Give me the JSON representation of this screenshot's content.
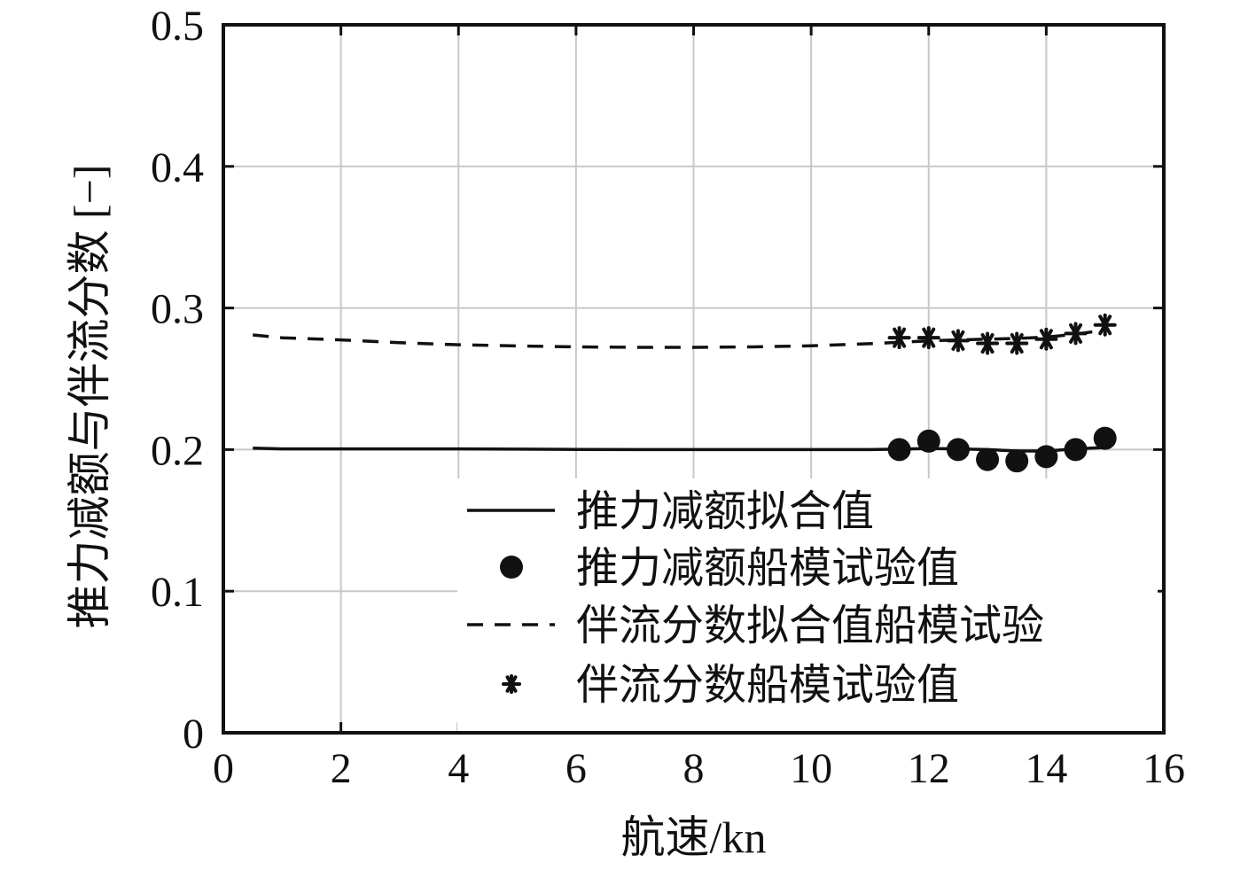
{
  "chart_data": {
    "type": "line",
    "xlabel": "航速/kn",
    "ylabel": "推力减额与伴流分数 [−]",
    "xlim": [
      0,
      16
    ],
    "ylim": [
      0,
      0.5
    ],
    "xticks": [
      0,
      2,
      4,
      6,
      8,
      10,
      12,
      14,
      16
    ],
    "yticks": [
      0,
      0.1,
      0.2,
      0.3,
      0.4,
      0.5
    ],
    "x_tick_labels": [
      "0",
      "2",
      "4",
      "6",
      "8",
      "10",
      "12",
      "14",
      "16"
    ],
    "y_tick_labels": [
      "0",
      "0.1",
      "0.2",
      "0.3",
      "0.4",
      "0.5"
    ],
    "grid": true,
    "legend_position": "lower-right",
    "series": [
      {
        "name": "推力减额拟合值",
        "style": "solid-line",
        "color": "#111111",
        "x": [
          0.5,
          1,
          2,
          3,
          4,
          5,
          6,
          7,
          8,
          9,
          10,
          11,
          11.5,
          12,
          12.5,
          13,
          13.5,
          14,
          14.5,
          15
        ],
        "y": [
          0.201,
          0.2005,
          0.2005,
          0.2005,
          0.2005,
          0.2003,
          0.2001,
          0.2,
          0.2,
          0.2,
          0.2,
          0.2,
          0.2003,
          0.2008,
          0.2005,
          0.2,
          0.199,
          0.199,
          0.2005,
          0.2015
        ]
      },
      {
        "name": "推力减额船模试验值",
        "style": "circle-marker",
        "color": "#111111",
        "x": [
          11.5,
          12,
          12.5,
          13,
          13.5,
          14,
          14.5,
          15
        ],
        "y": [
          0.2,
          0.206,
          0.2,
          0.193,
          0.192,
          0.195,
          0.2,
          0.208
        ]
      },
      {
        "name": "伴流分数拟合值船模试验",
        "style": "dashed-line",
        "color": "#111111",
        "x": [
          0.5,
          1,
          2,
          3,
          4,
          5,
          6,
          7,
          8,
          9,
          10,
          11,
          11.5,
          12,
          12.5,
          13,
          13.5,
          14,
          14.5,
          15
        ],
        "y": [
          0.281,
          0.279,
          0.2775,
          0.2755,
          0.274,
          0.2732,
          0.2725,
          0.2722,
          0.2722,
          0.2725,
          0.2733,
          0.2748,
          0.2758,
          0.2768,
          0.2775,
          0.278,
          0.2785,
          0.2795,
          0.2815,
          0.2845
        ]
      },
      {
        "name": "伴流分数船模试验值",
        "style": "asterisk-marker",
        "color": "#111111",
        "x": [
          11.5,
          12,
          12.5,
          13,
          13.5,
          14,
          14.5,
          15
        ],
        "y": [
          0.279,
          0.279,
          0.277,
          0.275,
          0.275,
          0.278,
          0.282,
          0.288
        ]
      }
    ]
  }
}
